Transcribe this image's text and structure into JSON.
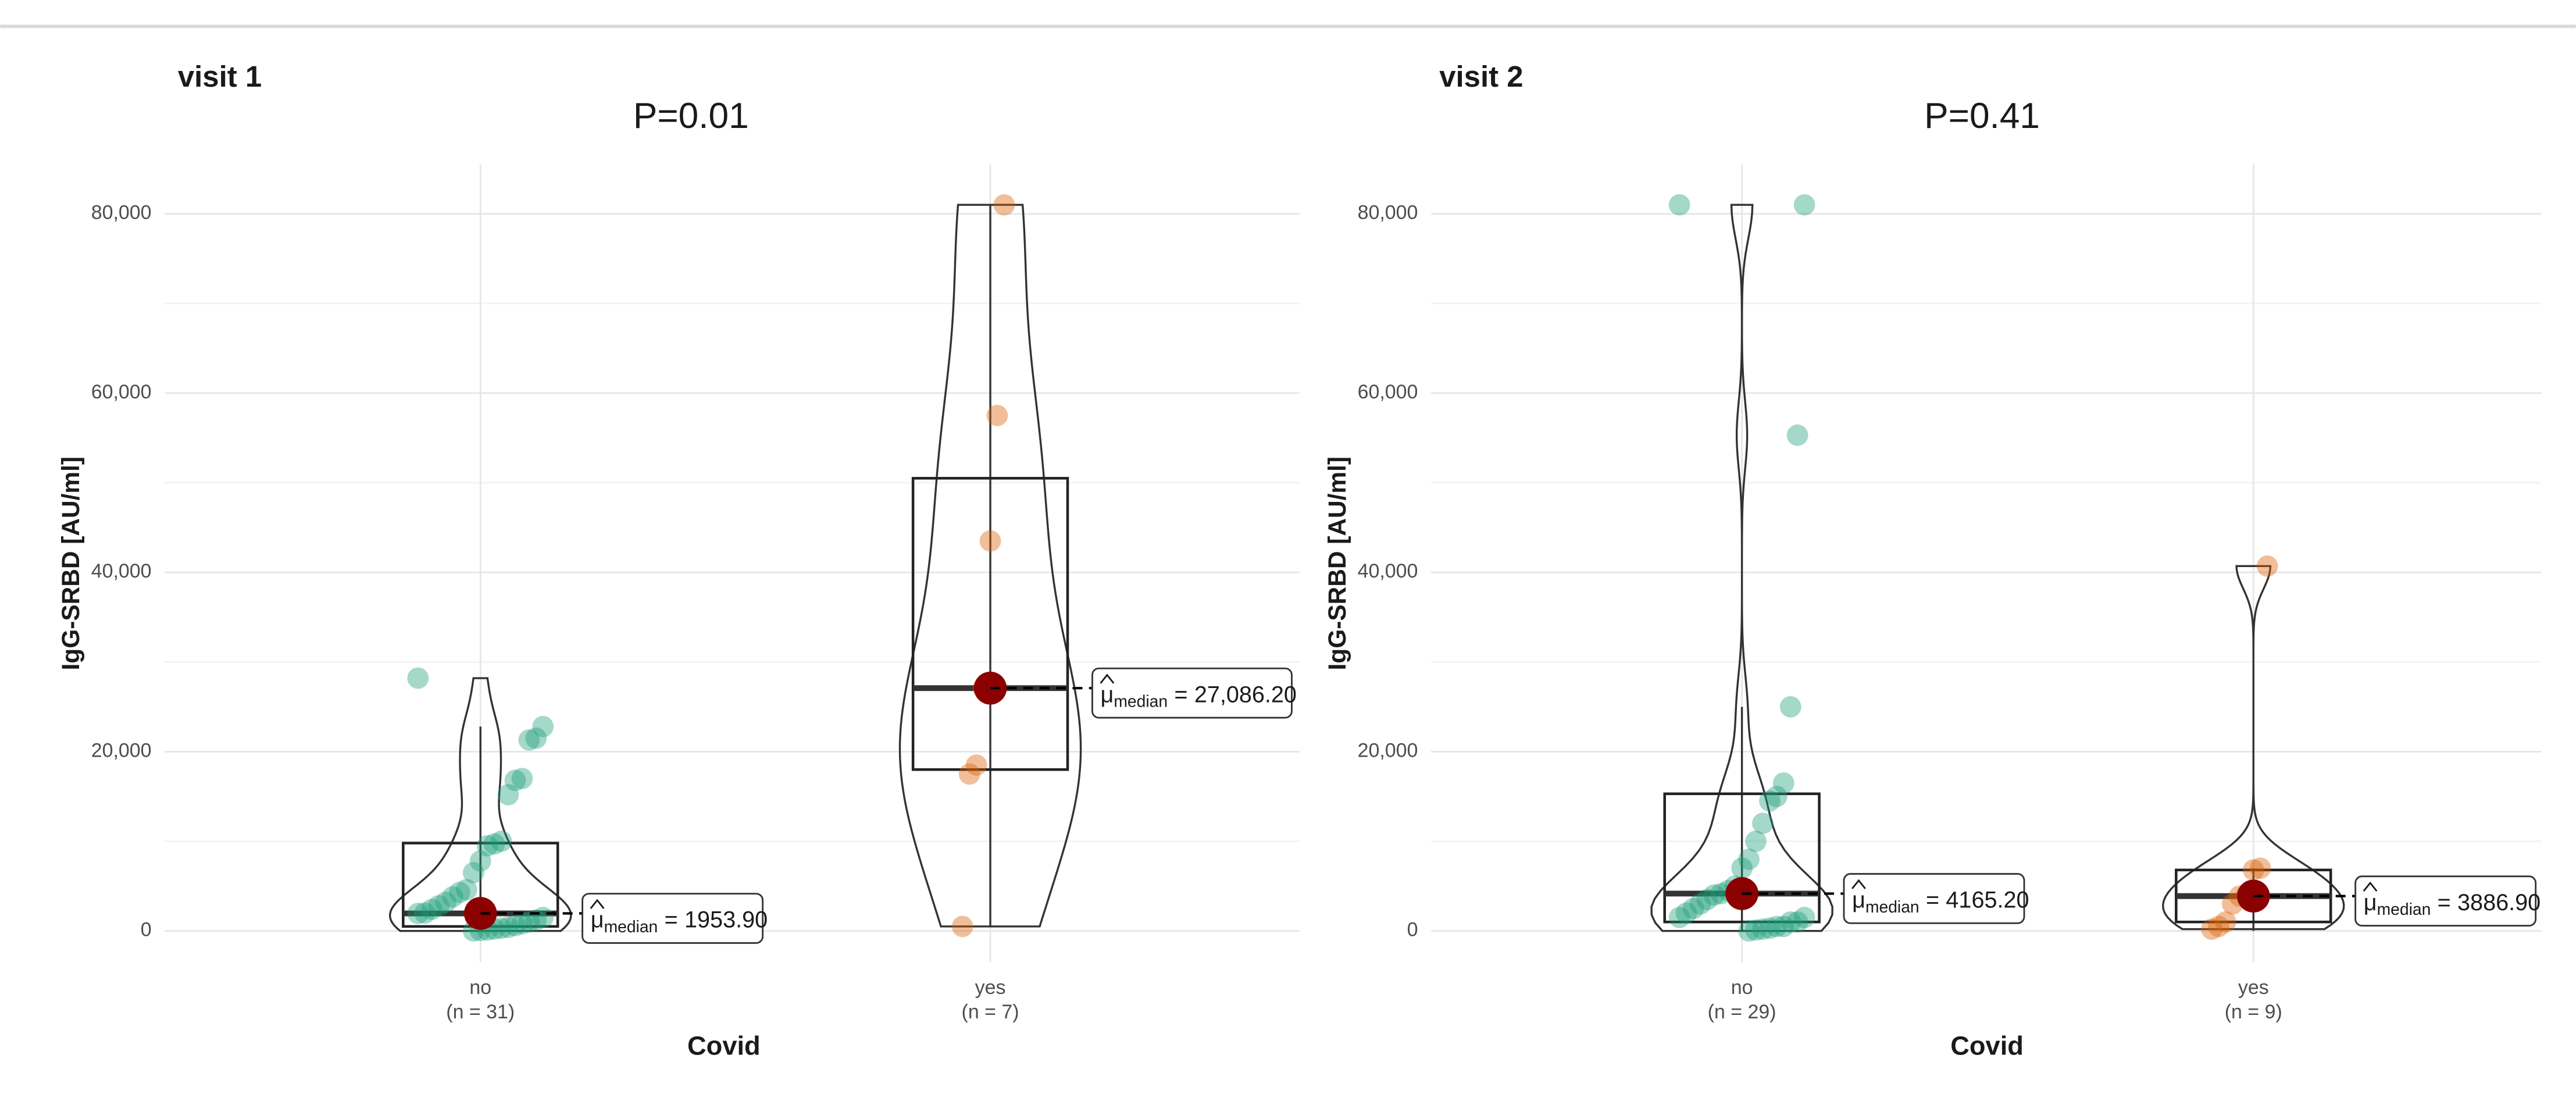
{
  "chart_data": [
    {
      "type": "violin-box",
      "title": "visit 1",
      "subtitle": "P=0.01",
      "y_label": "IgG-SRBD [AU/ml]",
      "x_label": "Covid",
      "ylim": [
        -3500,
        85500
      ],
      "yticks": [
        0,
        {
          "value": 20000,
          "label": "20,000"
        },
        {
          "value": 40000,
          "label": "40,000"
        },
        {
          "value": 60000,
          "label": "60,000"
        },
        {
          "value": 80000,
          "label": "80,000"
        }
      ],
      "grid": true,
      "median_color": "#8b0000",
      "median_symbol": "μ",
      "median_subscript": "median",
      "median_equals": "=",
      "categories": [
        "no",
        "yes"
      ],
      "category_counts": [
        "(n = 31)",
        "(n = 7)"
      ],
      "groups": [
        {
          "color": "#1b9e77",
          "points": [
            28200,
            22800,
            21500,
            21300,
            17000,
            16800,
            15200,
            10000,
            9700,
            9500,
            7800,
            6500,
            4600,
            4300,
            3800,
            3200,
            2800,
            2400,
            2000,
            1954,
            1500,
            1200,
            1000,
            800,
            600,
            400,
            300,
            200,
            100,
            50,
            0
          ],
          "whisker_low": 0,
          "q1": 500,
          "median": 1953.9,
          "q3": 9800,
          "whisker_high": 22800,
          "median_label": "1953.90"
        },
        {
          "color": "#d95f02",
          "points": [
            81000,
            57500,
            43500,
            27086,
            18500,
            17500,
            500
          ],
          "whisker_low": 500,
          "q1": 18000,
          "median": 27086.2,
          "q3": 50500,
          "whisker_high": 81000,
          "median_label": "27,086.20"
        }
      ]
    },
    {
      "type": "violin-box",
      "title": "visit 2",
      "subtitle": "P=0.41",
      "y_label": "IgG-SRBD [AU/ml]",
      "x_label": "Covid",
      "ylim": [
        -3500,
        85500
      ],
      "yticks": [
        0,
        {
          "value": 20000,
          "label": "20,000"
        },
        {
          "value": 40000,
          "label": "40,000"
        },
        {
          "value": 60000,
          "label": "60,000"
        },
        {
          "value": 80000,
          "label": "80,000"
        }
      ],
      "grid": true,
      "median_color": "#8b0000",
      "median_symbol": "μ",
      "median_subscript": "median",
      "median_equals": "=",
      "categories": [
        "no",
        "yes"
      ],
      "category_counts": [
        "(n = 29)",
        "(n = 9)"
      ],
      "groups": [
        {
          "color": "#1b9e77",
          "points": [
            81000,
            81000,
            55300,
            25000,
            16500,
            15000,
            14500,
            12000,
            10000,
            8000,
            7000,
            5000,
            4500,
            4165,
            4000,
            3500,
            3000,
            2500,
            2000,
            1500,
            1500,
            1000,
            1000,
            500,
            500,
            300,
            200,
            100,
            0
          ],
          "whisker_low": 0,
          "q1": 1000,
          "median": 4165.2,
          "q3": 15300,
          "whisker_high": 25000,
          "median_label": "4165.20"
        },
        {
          "color": "#d95f02",
          "points": [
            40700,
            7000,
            6800,
            4000,
            3887,
            3000,
            1000,
            500,
            200
          ],
          "whisker_low": 0,
          "q1": 1000,
          "median": 3886.9,
          "q3": 6800,
          "whisker_high": 7000,
          "median_label": "3886.90"
        }
      ]
    }
  ]
}
